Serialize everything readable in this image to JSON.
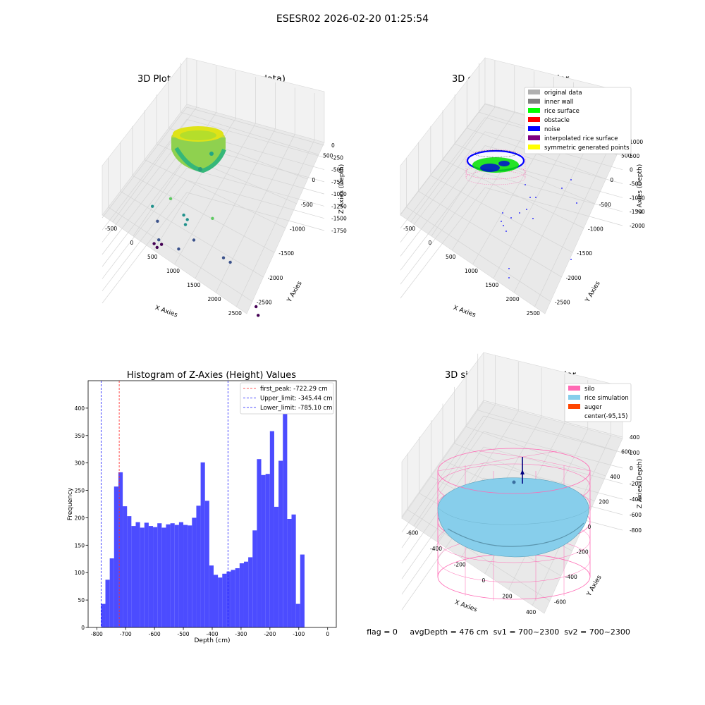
{
  "suptitle": "ESESR02 2026-02-20 01:25:54",
  "status_line": "flag = 0     avgDepth = 476 cm  sv1 = 700~2300  sv2 = 700~2300",
  "chart_data": [
    {
      "type": "scatter",
      "title": "3D Plot of Silo Interior(row data)",
      "xlabel": "X Axies",
      "ylabel": "Y Axies",
      "zlabel": "Z Axies (Depth)",
      "xticks": [
        "-500",
        "0",
        "500",
        "1000",
        "1500",
        "2000",
        "2500"
      ],
      "yticks": [
        "500",
        "0",
        "-500",
        "-1000",
        "-1500",
        "-2000",
        "-2500"
      ],
      "zticks": [
        "0",
        "-250",
        "-500",
        "-750",
        "-1000",
        "-1250",
        "-1500",
        "-1750"
      ],
      "x": [
        1000,
        1300,
        1350,
        2200,
        2500,
        1500,
        600,
        1500,
        700,
        1200,
        600,
        550,
        300,
        400,
        1800,
        2100,
        2100
      ],
      "y": [
        200,
        0,
        -100,
        -100,
        -200,
        200,
        500,
        -200,
        400,
        100,
        200,
        0,
        0,
        0,
        -1500,
        -2300,
        -2400
      ],
      "z": [
        -600,
        -800,
        -850,
        -600,
        -1300,
        -1000,
        -950,
        -1200,
        -1200,
        -1550,
        -1550,
        -1600,
        -1650,
        -1700,
        -1200,
        -1800,
        -1950
      ],
      "cluster": "dense ring of points near x≈0, y≈0, z≈0 (colormap viridis by depth)",
      "grid": true
    },
    {
      "type": "scatter",
      "title": "3D classify of Silo Interior",
      "xlabel": "X Axies",
      "ylabel": "Y Axies",
      "zlabel": "Z Axies (Depth)",
      "xticks": [
        "-500",
        "0",
        "500",
        "1000",
        "1500",
        "2000",
        "2500"
      ],
      "yticks": [
        "500",
        "0",
        "-500",
        "-1000",
        "-1500",
        "-2000",
        "-2500"
      ],
      "zticks": [
        "1000",
        "500",
        "0",
        "-500",
        "-1000",
        "-1500",
        "-2000"
      ],
      "legend": [
        {
          "label": "original data",
          "color": "#b0b0b0"
        },
        {
          "label": "inner wall",
          "color": "#808080"
        },
        {
          "label": "rice surface",
          "color": "#00ff00"
        },
        {
          "label": "obstacle",
          "color": "#ff0000"
        },
        {
          "label": "noise",
          "color": "#0000ff"
        },
        {
          "label": "interpolated rice surface",
          "color": "#800080"
        },
        {
          "label": "symmetric generated points",
          "color": "#ffff00"
        }
      ],
      "legend_loc": "upper right",
      "grid": true
    },
    {
      "type": "bar",
      "title": "Histogram of Z-Axies (Height) Values",
      "xlabel": "Depth (cm)",
      "ylabel": "Frequency",
      "xlim": [
        -830,
        30
      ],
      "ylim": [
        0,
        450
      ],
      "xticks": [
        -800,
        -700,
        -600,
        -500,
        -400,
        -300,
        -200,
        -100,
        0
      ],
      "yticks": [
        0,
        50,
        100,
        150,
        200,
        250,
        300,
        350,
        400
      ],
      "bin_start": -785.1,
      "bin_width": 15.0,
      "values": [
        43,
        87,
        126,
        257,
        283,
        221,
        203,
        185,
        192,
        182,
        191,
        185,
        183,
        190,
        182,
        188,
        190,
        187,
        192,
        187,
        186,
        200,
        222,
        301,
        231,
        113,
        96,
        91,
        98,
        102,
        105,
        108,
        117,
        120,
        128,
        177,
        307,
        278,
        280,
        358,
        220,
        304,
        420,
        198,
        206,
        43,
        133
      ],
      "bar_color": "#4c4cff",
      "vlines": [
        {
          "label": "first_peak: -722.29 cm",
          "x": -722.29,
          "color": "#ff2a2a"
        },
        {
          "label": "Upper_limit: -345.44 cm",
          "x": -345.44,
          "color": "#1a1aff"
        },
        {
          "label": "Lower_limit: -785.10 cm",
          "x": -785.1,
          "color": "#1a1aff"
        }
      ],
      "legend_loc": "upper right"
    },
    {
      "type": "surface",
      "title": "3D simulation of Silo Interior",
      "xlabel": "X Axies",
      "ylabel": "Y Axies",
      "zlabel": "Z Axies (Depth)",
      "xticks": [
        "-600",
        "-400",
        "-200",
        "0",
        "200",
        "400"
      ],
      "yticks": [
        "600",
        "400",
        "200",
        "0",
        "-200",
        "-400",
        "-600"
      ],
      "zticks": [
        "400",
        "200",
        "0",
        "-200",
        "-400",
        "-600",
        "-800"
      ],
      "legend": [
        {
          "label": "silo",
          "color": "#ff69b4"
        },
        {
          "label": "rice simulation",
          "color": "#87ceeb"
        },
        {
          "label": "auger",
          "color": "#ff4500"
        },
        {
          "label": "center(-95,15)",
          "color": ""
        }
      ],
      "legend_loc": "upper right",
      "grid": true
    }
  ]
}
